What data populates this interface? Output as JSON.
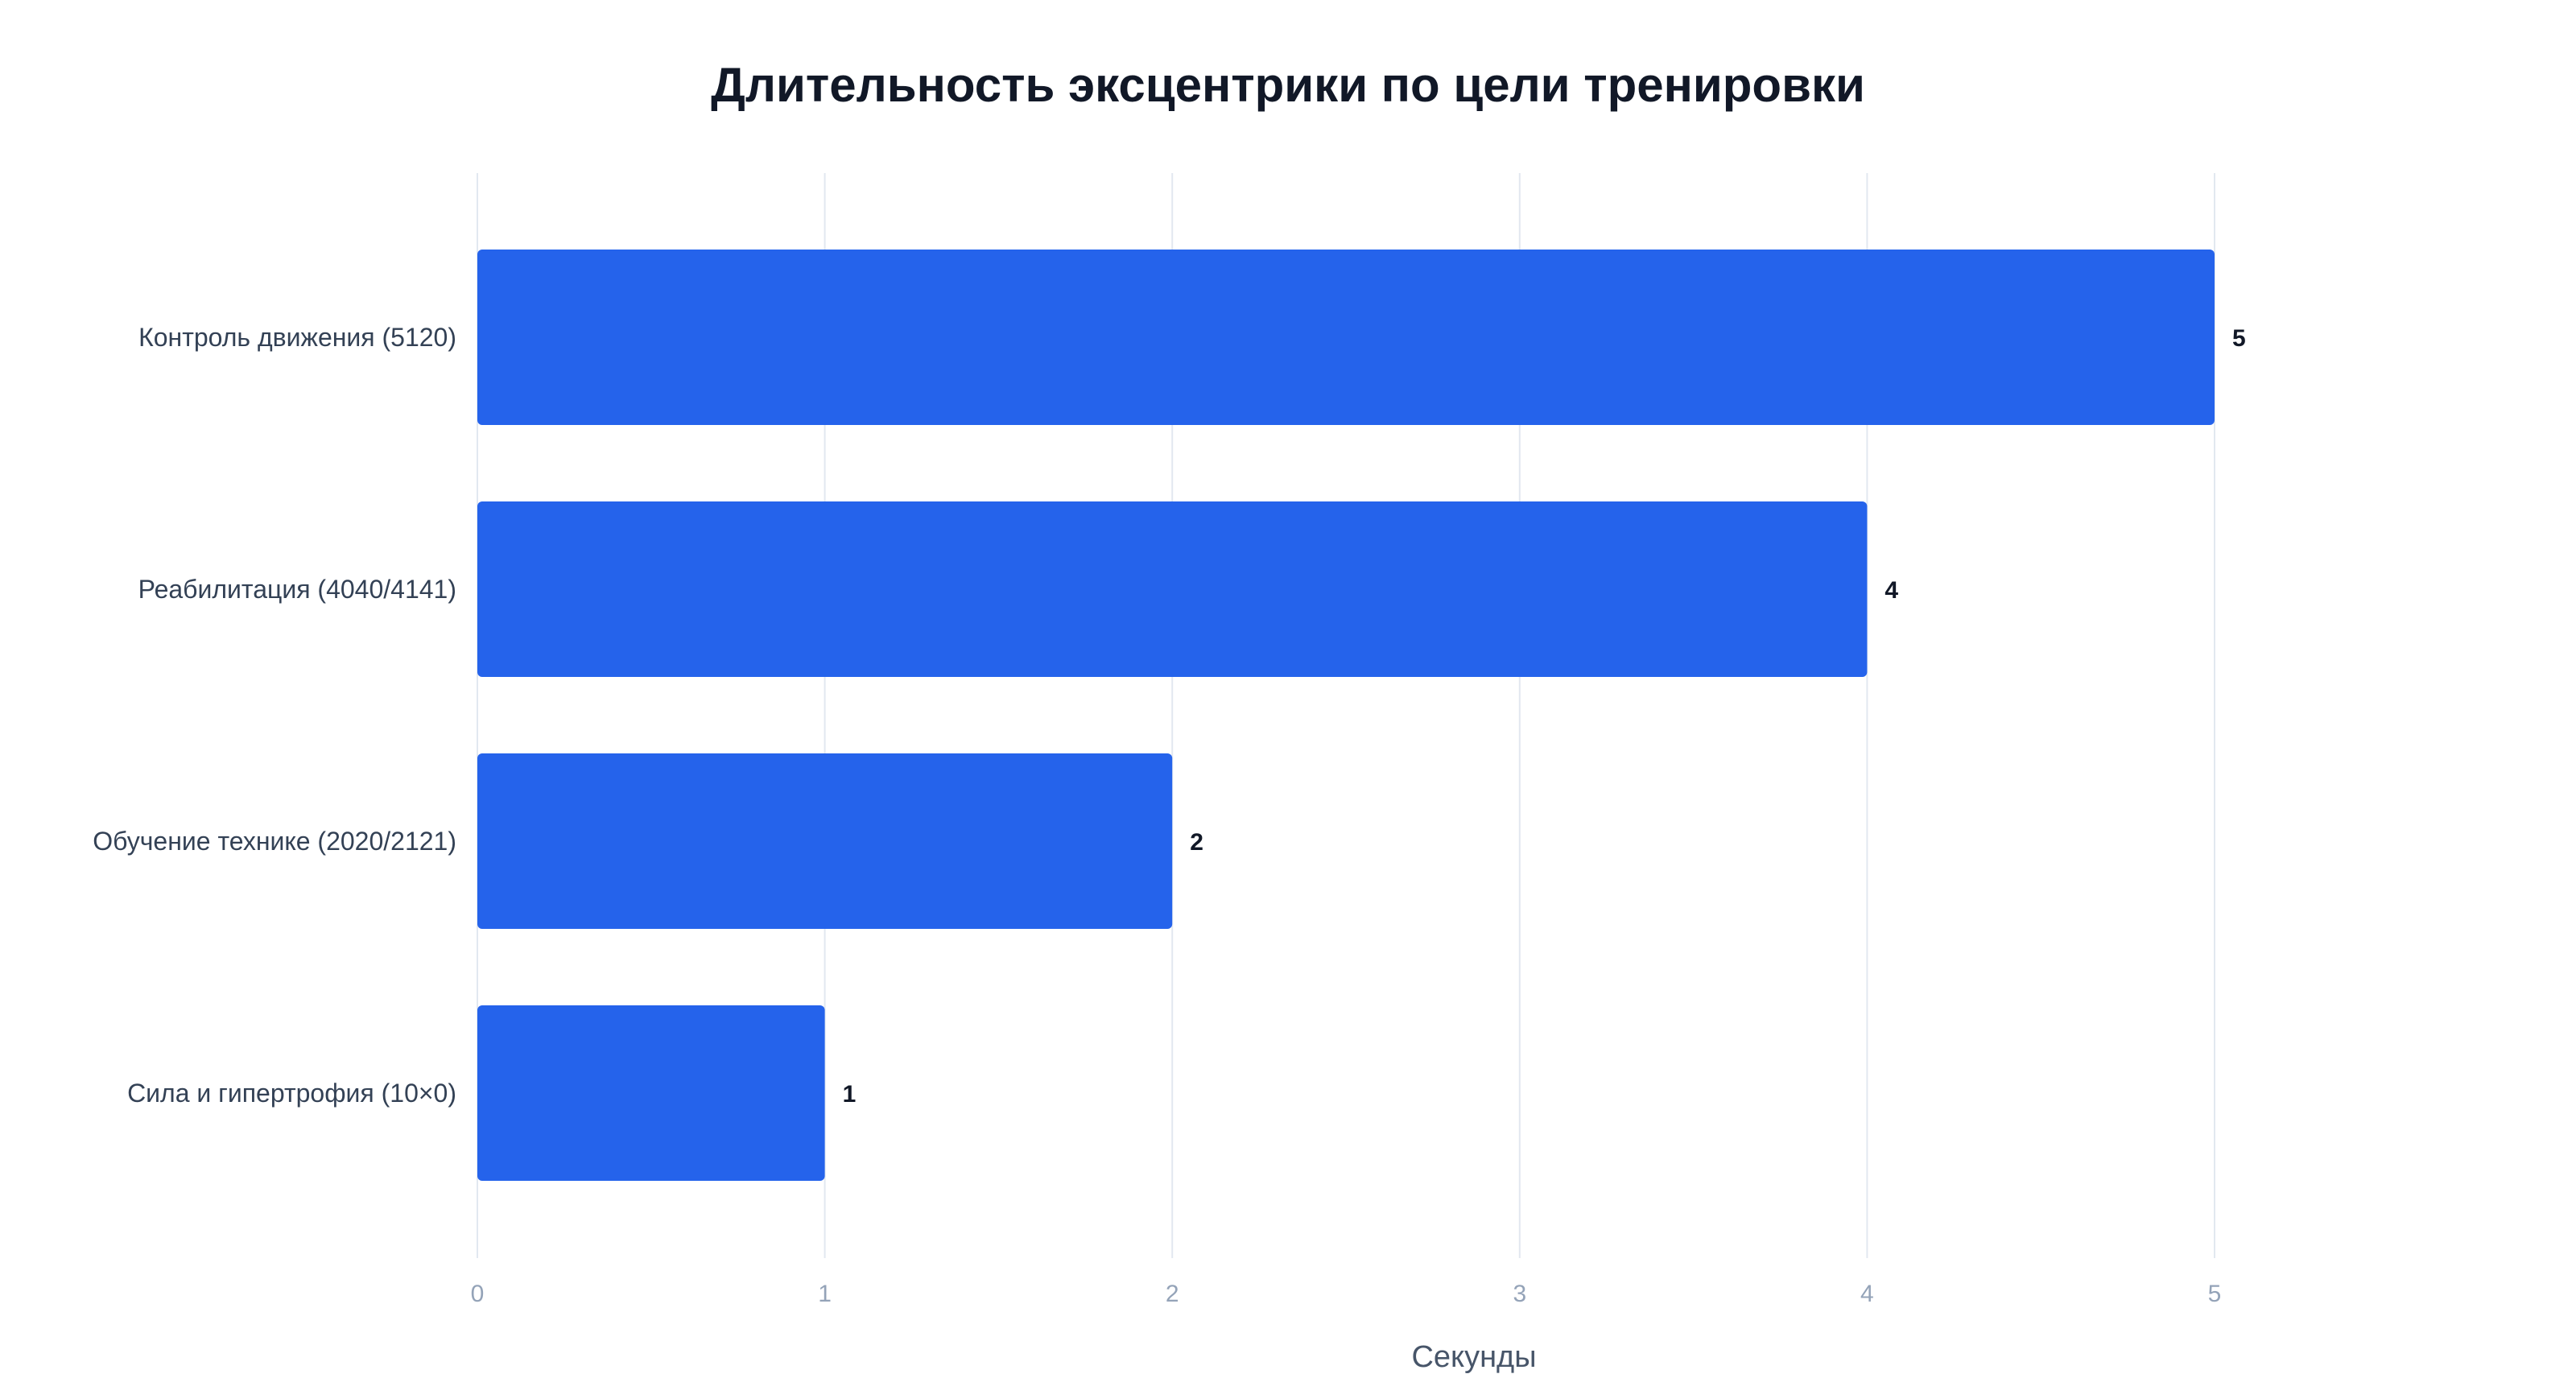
{
  "chart_data": {
    "type": "bar",
    "orientation": "horizontal",
    "title": "Длительность эксцентрики по цели тренировки",
    "xlabel": "Секунды",
    "ylabel": "",
    "categories": [
      "Контроль движения (5120)",
      "Реабилитация (4040/4141)",
      "Обучение технике (2020/2121)",
      "Сила и гипертрофия (10×0)"
    ],
    "values": [
      5,
      4,
      2,
      1
    ],
    "data_labels": [
      "5",
      "4",
      "2",
      "1"
    ],
    "xlim": [
      0,
      5
    ],
    "xticks": [
      0,
      1,
      2,
      3,
      4,
      5
    ],
    "xtick_labels": [
      "0",
      "1",
      "2",
      "3",
      "4",
      "5"
    ],
    "grid": "vertical",
    "legend": "none",
    "bar_color": "#2563eb"
  }
}
